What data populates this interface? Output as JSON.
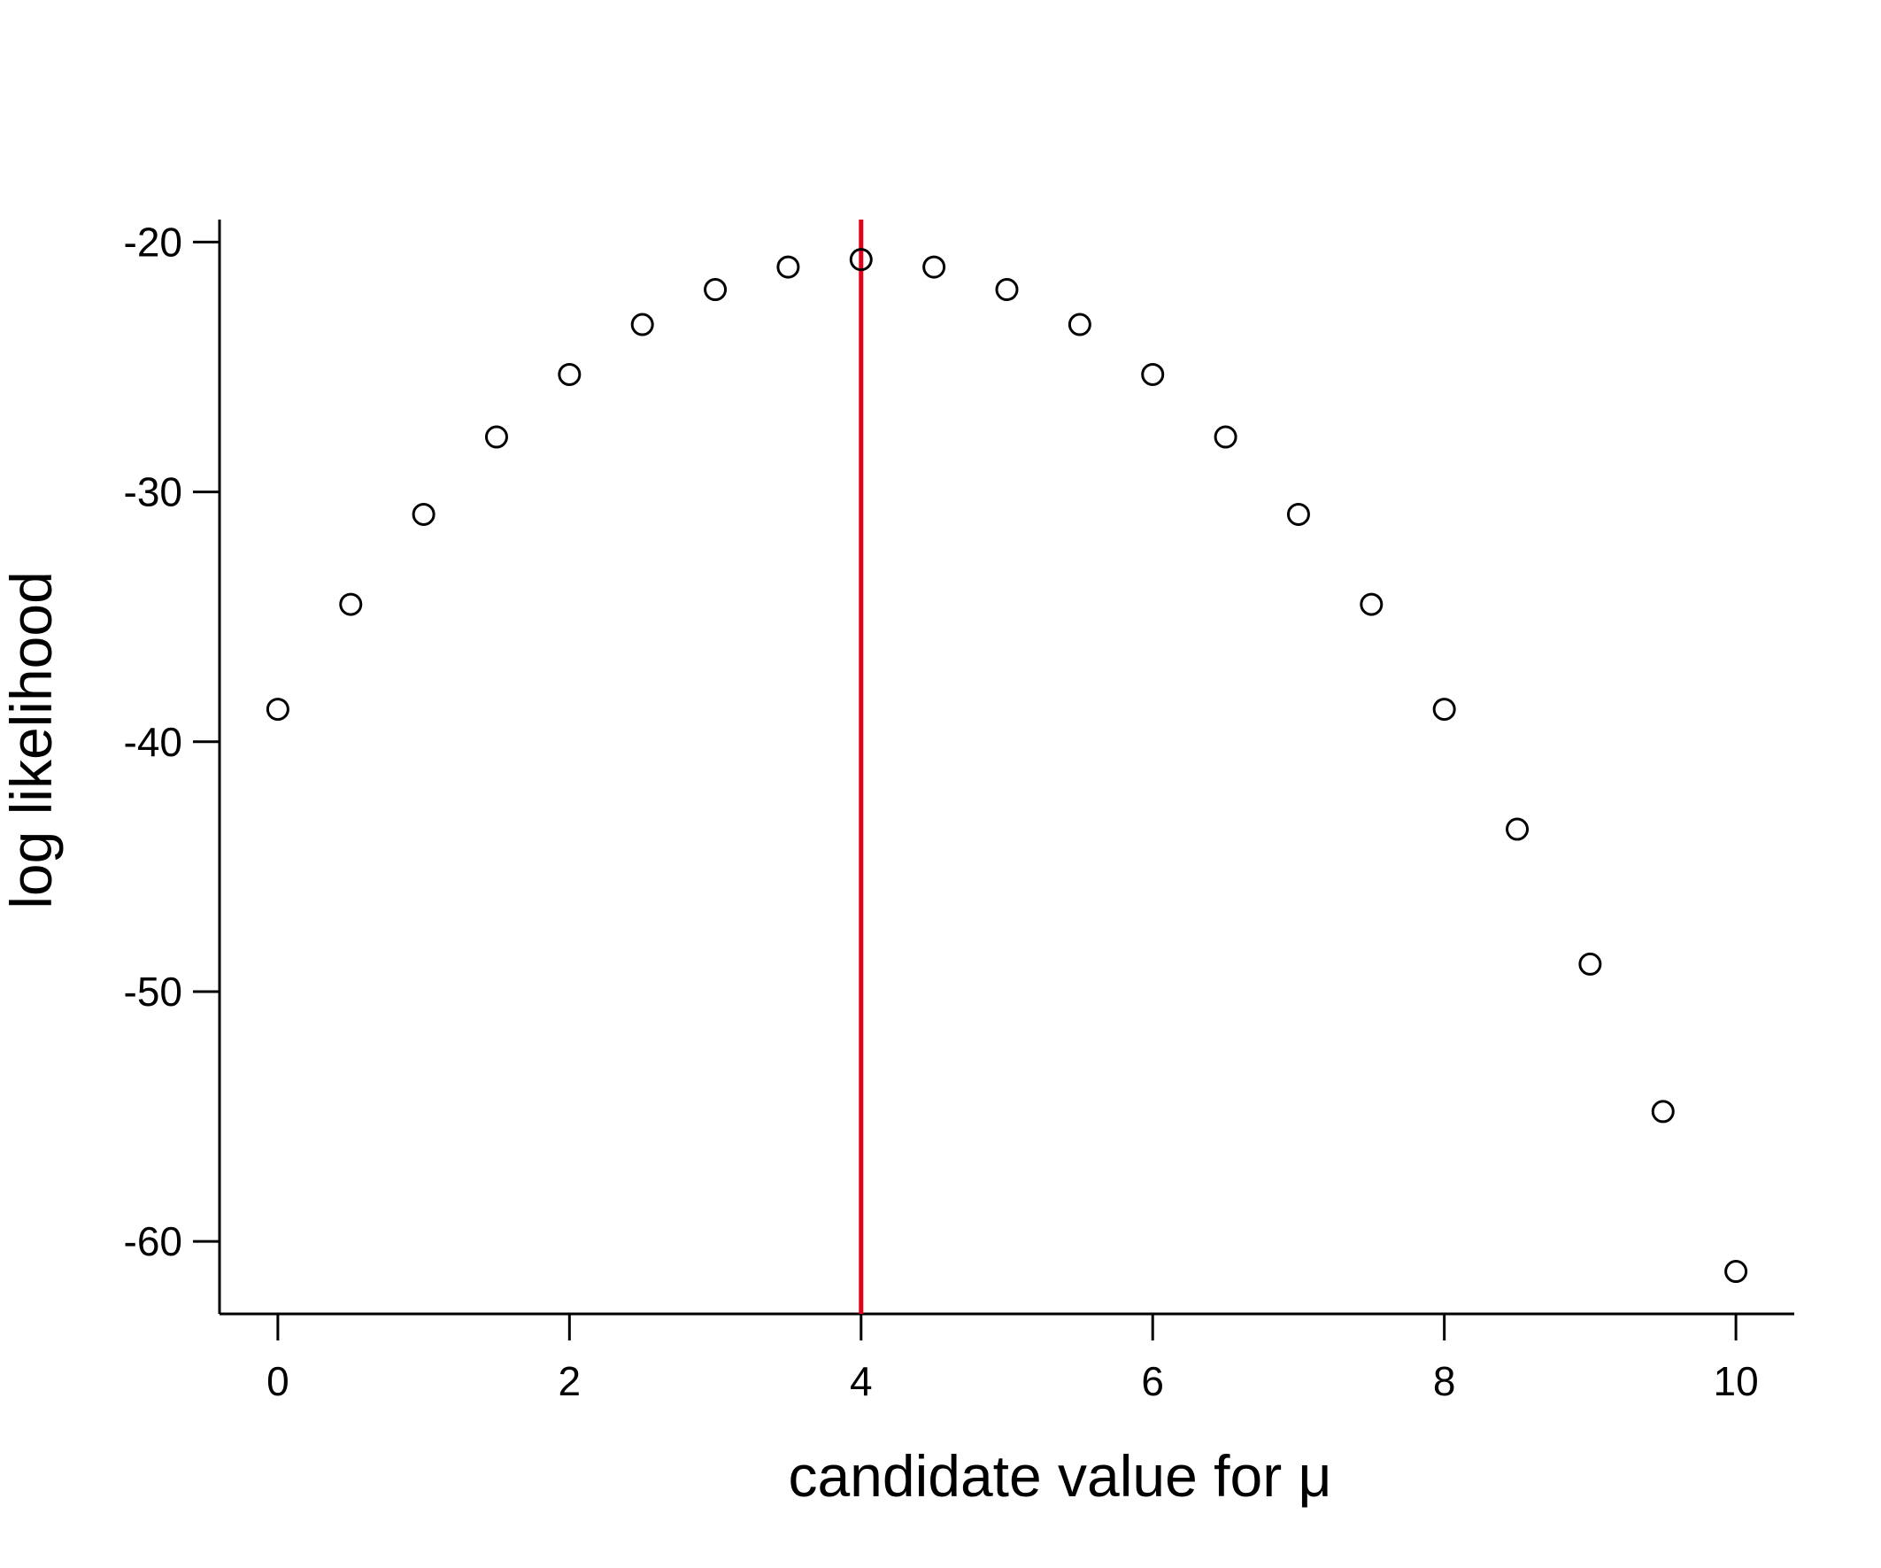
{
  "chart_data": {
    "type": "scatter",
    "title": "",
    "xlabel": "candidate value for μ",
    "ylabel": "log likelihood",
    "xlim": [
      -0.4,
      10.4
    ],
    "ylim": [
      -62.9,
      -19.1
    ],
    "x_ticks": [
      0,
      2,
      4,
      6,
      8,
      10
    ],
    "x_tick_labels": [
      "0",
      "2",
      "4",
      "6",
      "8",
      "10"
    ],
    "y_ticks": [
      -20,
      -30,
      -40,
      -50,
      -60
    ],
    "y_tick_labels": [
      "-20",
      "-30",
      "-40",
      "-50",
      "-60"
    ],
    "grid": false,
    "marker": "open-circle",
    "series": [
      {
        "x": [
          0,
          0.5,
          1,
          1.5,
          2,
          2.5,
          3,
          3.5,
          4,
          4.5,
          5,
          5.5,
          6,
          6.5,
          7,
          7.5,
          8,
          8.5,
          9,
          9.5,
          10
        ],
        "y": [
          -38.7,
          -34.5,
          -30.9,
          -27.8,
          -25.3,
          -23.3,
          -21.9,
          -21.0,
          -20.7,
          -21.0,
          -21.9,
          -23.3,
          -25.3,
          -27.8,
          -30.9,
          -34.5,
          -38.7,
          -43.5,
          -48.9,
          -54.8,
          -61.2
        ]
      }
    ],
    "vline": {
      "x": 4,
      "color": "#e3001b"
    }
  }
}
